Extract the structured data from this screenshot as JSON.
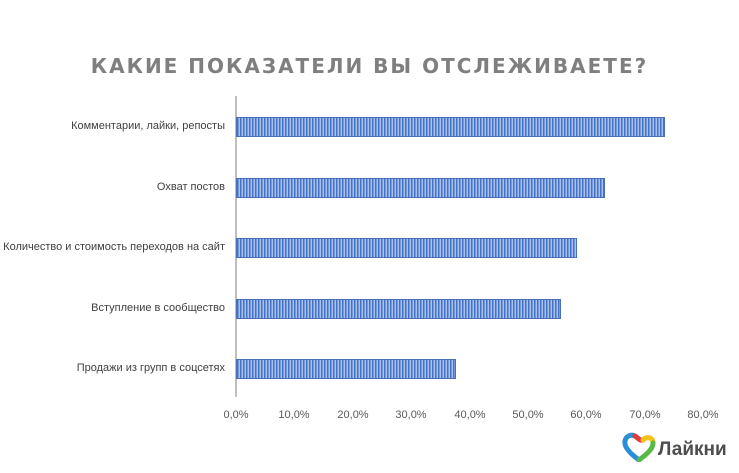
{
  "chart_data": {
    "type": "bar",
    "orientation": "horizontal",
    "title": "КАКИЕ ПОКАЗАТЕЛИ ВЫ ОТСЛЕЖИВАЕТЕ?",
    "categories": [
      "Комментарии, лайки, репосты",
      "Охват постов",
      "Количество и стоимость переходов на сайт",
      "Вступление в сообщество",
      "Продажи из групп в соцсетях"
    ],
    "values": [
      73.5,
      63.2,
      58.4,
      55.7,
      37.7
    ],
    "xlabel": "",
    "ylabel": "",
    "xlim": [
      0,
      80
    ],
    "x_ticks": [
      "0,0%",
      "10,0%",
      "20,0%",
      "30,0%",
      "40,0%",
      "50,0%",
      "60,0%",
      "70,0%",
      "80,0%"
    ],
    "grid": false,
    "legend": null,
    "bar_color": "#4472c4"
  },
  "title": "КАКИЕ ПОКАЗАТЕЛИ ВЫ ОТСЛЕЖИВАЕТЕ?",
  "logo": {
    "text": "Лайкни"
  }
}
